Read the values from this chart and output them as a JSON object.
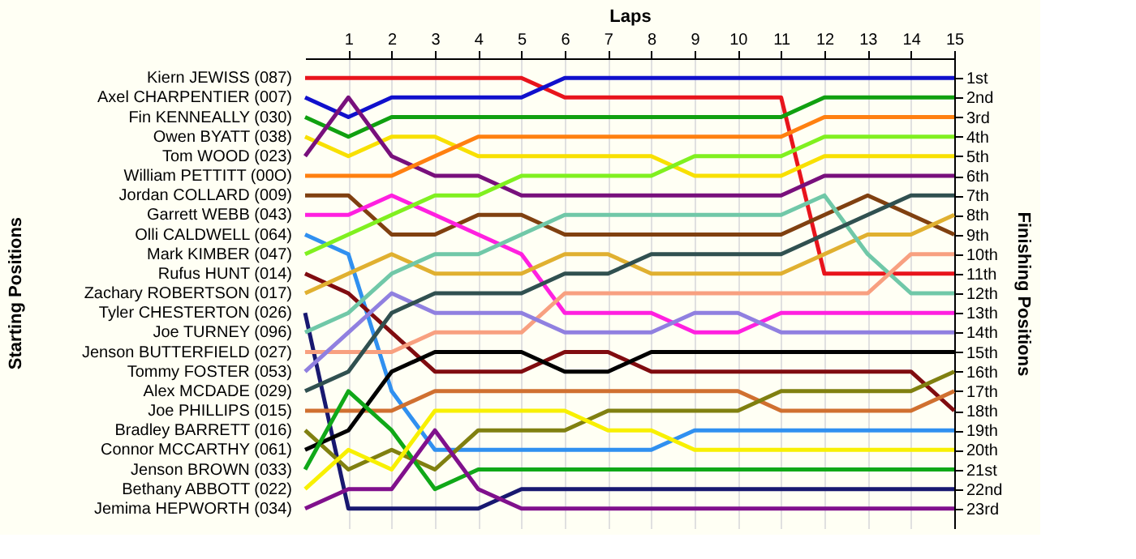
{
  "chart_data": {
    "type": "line",
    "xlabel": "Laps",
    "ylabel": "Finishing Positions",
    "x": [
      0,
      1,
      2,
      3,
      4,
      5,
      6,
      7,
      8,
      9,
      10,
      11,
      12,
      13,
      14,
      15
    ],
    "xlim": [
      0,
      15
    ],
    "xticks": [
      1,
      2,
      3,
      4,
      5,
      6,
      7,
      8,
      9,
      10,
      11,
      12,
      13,
      14,
      15
    ],
    "ylim": [
      24,
      0
    ],
    "yticks": [
      {
        "value": 1,
        "label": "1st"
      },
      {
        "value": 2,
        "label": "2nd"
      },
      {
        "value": 3,
        "label": "3rd"
      },
      {
        "value": 4,
        "label": "4th"
      },
      {
        "value": 5,
        "label": "5th"
      },
      {
        "value": 6,
        "label": "6th"
      },
      {
        "value": 7,
        "label": "7th"
      },
      {
        "value": 8,
        "label": "8th"
      },
      {
        "value": 9,
        "label": "9th"
      },
      {
        "value": 10,
        "label": "10th"
      },
      {
        "value": 11,
        "label": "11th"
      },
      {
        "value": 12,
        "label": "12th"
      },
      {
        "value": 13,
        "label": "13th"
      },
      {
        "value": 14,
        "label": "14th"
      },
      {
        "value": 15,
        "label": "15th"
      },
      {
        "value": 16,
        "label": "16th"
      },
      {
        "value": 17,
        "label": "17th"
      },
      {
        "value": 18,
        "label": "18th"
      },
      {
        "value": 19,
        "label": "19th"
      },
      {
        "value": 20,
        "label": "20th"
      },
      {
        "value": 21,
        "label": "21st"
      },
      {
        "value": 22,
        "label": "22nd"
      },
      {
        "value": 23,
        "label": "23rd"
      }
    ],
    "grid": "x",
    "legend": false,
    "annotations": [
      "Starting Positions",
      "Kiern JEWISS (087)",
      "Axel CHARPENTIER (007)",
      "Fin KENNEALLY (030)",
      "Owen BYATT (038)",
      "Tom WOOD (023)",
      "William PETTITT (00O)",
      "Jordan COLLARD (009)",
      "Garrett WEBB (043)",
      "Olli CALDWELL (064)",
      "Mark KIMBER (047)",
      "Rufus HUNT (014)",
      "Zachary ROBERTSON (017)",
      "Tyler CHESTERTON (026)",
      "Joe TURNEY (096)",
      "Jenson BUTTERFIELD (027)",
      "Tommy FOSTER (053)",
      "Alex MCDADE (029)",
      "Joe PHILLIPS (015)",
      "Bradley BARRETT (016)",
      "Connor MCCARTHY (061)",
      "Jenson BROWN (033)",
      "Bethany ABBOTT (022)",
      "Jemima HEPWORTH (034)"
    ],
    "series": [
      {
        "color": "#e8141c",
        "values": [
          1,
          1,
          1,
          1,
          1,
          1,
          2,
          2,
          2,
          2,
          2,
          2,
          11,
          11,
          11,
          11
        ]
      },
      {
        "color": "#1010cc",
        "values": [
          2,
          3,
          2,
          2,
          2,
          2,
          1,
          1,
          1,
          1,
          1,
          1,
          1,
          1,
          1,
          1
        ]
      },
      {
        "color": "#10a010",
        "values": [
          3,
          4,
          3,
          3,
          3,
          3,
          3,
          3,
          3,
          3,
          3,
          3,
          2,
          2,
          2,
          2
        ]
      },
      {
        "color": "#f8e000",
        "values": [
          4,
          5,
          4,
          4,
          5,
          5,
          5,
          5,
          5,
          6,
          6,
          6,
          5,
          5,
          5,
          5
        ]
      },
      {
        "color": "#78107c",
        "values": [
          5,
          2,
          5,
          6,
          6,
          7,
          7,
          7,
          7,
          7,
          7,
          7,
          6,
          6,
          6,
          6
        ]
      },
      {
        "color": "#ff8010",
        "values": [
          6,
          6,
          6,
          5,
          4,
          4,
          4,
          4,
          4,
          4,
          4,
          4,
          3,
          3,
          3,
          3
        ]
      },
      {
        "color": "#804010",
        "values": [
          7,
          7,
          9,
          9,
          8,
          8,
          9,
          9,
          9,
          9,
          9,
          9,
          8,
          7,
          8,
          9
        ]
      },
      {
        "color": "#ff20e0",
        "values": [
          8,
          8,
          7,
          8,
          9,
          10,
          13,
          13,
          13,
          14,
          14,
          13,
          13,
          13,
          13,
          13
        ]
      },
      {
        "color": "#3090f0",
        "values": [
          9,
          10,
          17,
          20,
          20,
          20,
          20,
          20,
          20,
          19,
          19,
          19,
          19,
          19,
          19,
          19
        ]
      },
      {
        "color": "#80f020",
        "values": [
          10,
          9,
          8,
          7,
          7,
          6,
          6,
          6,
          6,
          5,
          5,
          5,
          4,
          4,
          4,
          4
        ]
      },
      {
        "color": "#800c10",
        "values": [
          11,
          12,
          14,
          16,
          16,
          16,
          15,
          15,
          16,
          16,
          16,
          16,
          16,
          16,
          16,
          18
        ]
      },
      {
        "color": "#e0b030",
        "values": [
          12,
          11,
          10,
          11,
          11,
          11,
          10,
          10,
          11,
          11,
          11,
          11,
          10,
          9,
          9,
          8
        ]
      },
      {
        "color": "#181870",
        "values": [
          13,
          23,
          23,
          23,
          23,
          22,
          22,
          22,
          22,
          22,
          22,
          22,
          22,
          22,
          22,
          22
        ]
      },
      {
        "color": "#70c8a8",
        "values": [
          14,
          13,
          11,
          10,
          10,
          9,
          8,
          8,
          8,
          8,
          8,
          8,
          7,
          10,
          12,
          12
        ]
      },
      {
        "color": "#f8a080",
        "values": [
          15,
          15,
          15,
          14,
          14,
          14,
          12,
          12,
          12,
          12,
          12,
          12,
          12,
          12,
          10,
          10
        ]
      },
      {
        "color": "#9080e0",
        "values": [
          16,
          14,
          12,
          13,
          13,
          13,
          14,
          14,
          14,
          13,
          13,
          14,
          14,
          14,
          14,
          14
        ]
      },
      {
        "color": "#305050",
        "values": [
          17,
          16,
          13,
          12,
          12,
          12,
          11,
          11,
          10,
          10,
          10,
          10,
          9,
          8,
          7,
          7
        ]
      },
      {
        "color": "#d07030",
        "values": [
          18,
          18,
          18,
          17,
          17,
          17,
          17,
          17,
          17,
          17,
          17,
          18,
          18,
          18,
          18,
          17
        ]
      },
      {
        "color": "#808010",
        "values": [
          19,
          21,
          20,
          21,
          19,
          19,
          19,
          18,
          18,
          18,
          18,
          17,
          17,
          17,
          17,
          16
        ]
      },
      {
        "color": "#000000",
        "values": [
          20,
          19,
          16,
          15,
          15,
          15,
          16,
          16,
          15,
          15,
          15,
          15,
          15,
          15,
          15,
          15
        ]
      },
      {
        "color": "#10a818",
        "values": [
          21,
          17,
          19,
          22,
          21,
          21,
          21,
          21,
          21,
          21,
          21,
          21,
          21,
          21,
          21,
          21
        ]
      },
      {
        "color": "#f8f000",
        "values": [
          22,
          20,
          21,
          18,
          18,
          18,
          18,
          19,
          19,
          20,
          20,
          20,
          20,
          20,
          20,
          20
        ]
      },
      {
        "color": "#80108c",
        "values": [
          23,
          22,
          22,
          19,
          22,
          23,
          23,
          23,
          23,
          23,
          23,
          23,
          23,
          23,
          23,
          23
        ]
      }
    ]
  }
}
